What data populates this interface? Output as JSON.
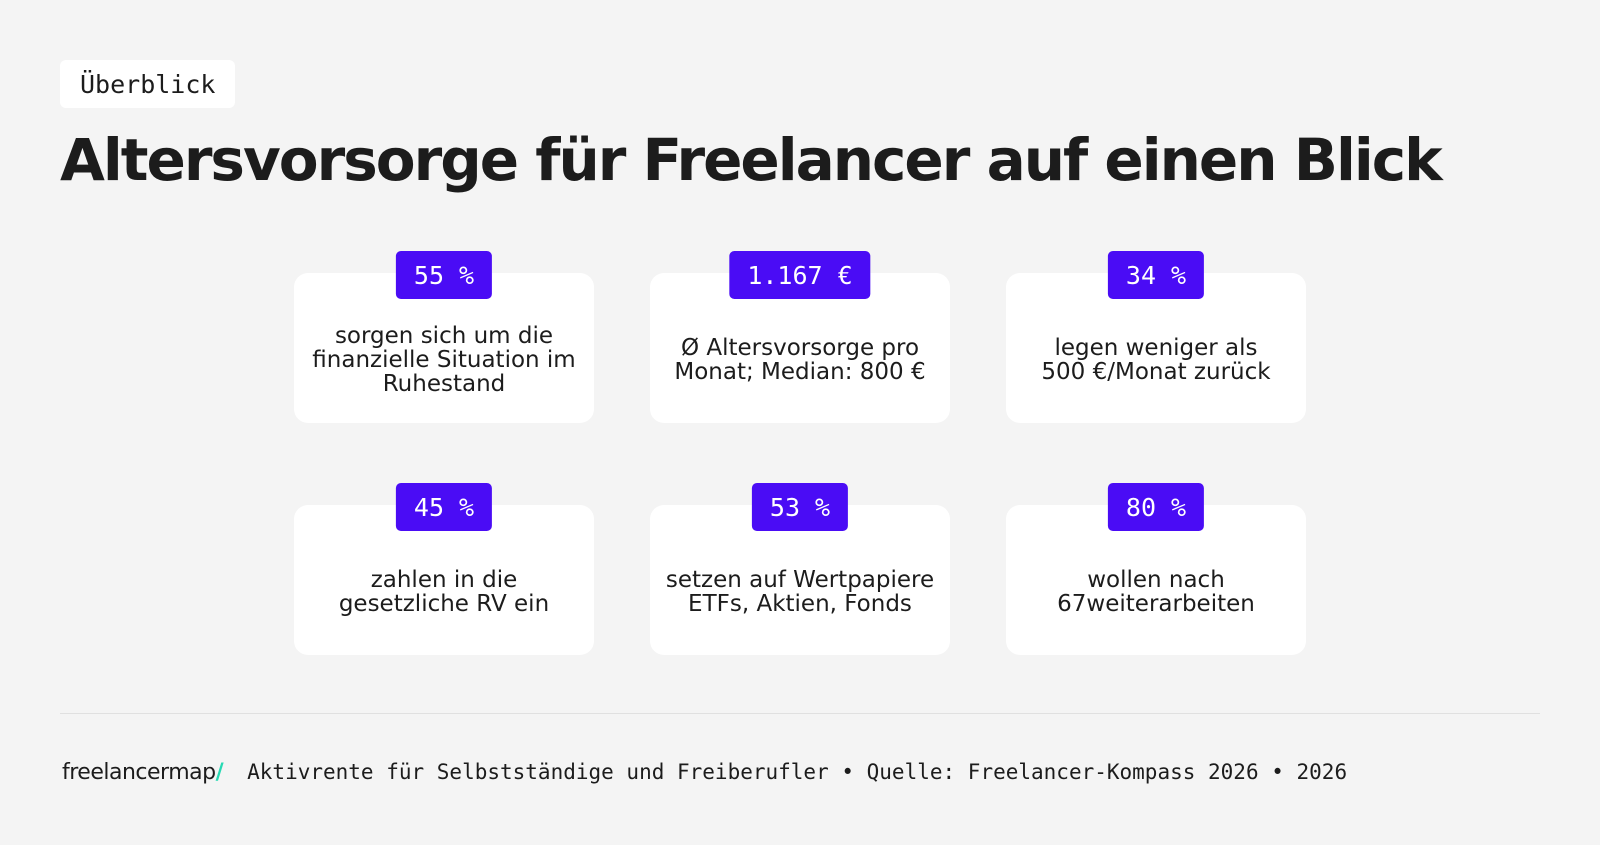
{
  "header": {
    "eyebrow": "Überblick",
    "title": "Altersvorsorge für Freelancer auf einen Blick"
  },
  "stats": [
    {
      "value": "55 %",
      "text": "sorgen sich um die\nfinanzielle Situation im\nRuhestand"
    },
    {
      "value": "1.167 €",
      "text": "Ø Altersvorsorge pro\nMonat; Median: 800 €"
    },
    {
      "value": "34 %",
      "text": "legen weniger als\n500 €/Monat zurück"
    },
    {
      "value": "45 %",
      "text": "zahlen in die\ngesetzliche RV ein"
    },
    {
      "value": "53 %",
      "text": "setzen auf Wertpapiere\nETFs, Aktien, Fonds"
    },
    {
      "value": "80 %",
      "text": "wollen nach\n67weiterarbeiten"
    }
  ],
  "footer": {
    "logo_text": "freelancermap",
    "logo_slash": "/",
    "text": "Aktivrente für Selbstständige und Freiberufler • Quelle: Freelancer-Kompass 2026 • 2026"
  },
  "colors": {
    "accent": "#4a0cf5",
    "logo_accent": "#27d9b3",
    "background": "#f4f4f4",
    "card": "#ffffff"
  }
}
